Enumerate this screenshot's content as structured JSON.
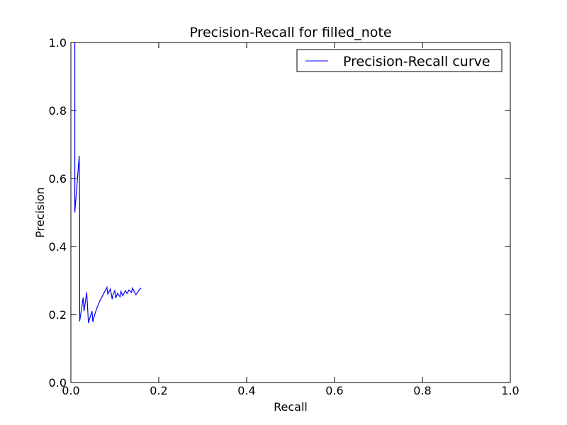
{
  "chart_data": {
    "type": "line",
    "title": "Precision-Recall for filled_note",
    "xlabel": "Recall",
    "ylabel": "Precision",
    "xlim": [
      0.0,
      1.0
    ],
    "ylim": [
      0.0,
      1.0
    ],
    "xticks": [
      "0.0",
      "0.2",
      "0.4",
      "0.6",
      "0.8",
      "1.0"
    ],
    "yticks": [
      "0.0",
      "0.2",
      "0.4",
      "0.6",
      "0.8",
      "1.0"
    ],
    "grid": false,
    "legend_position": "top-right",
    "series": [
      {
        "name": "Precision-Recall curve",
        "color": "#0000ff",
        "x": [
          0.009,
          0.009,
          0.019,
          0.02,
          0.02,
          0.028,
          0.03,
          0.036,
          0.04,
          0.042,
          0.048,
          0.05,
          0.052,
          0.058,
          0.066,
          0.074,
          0.082,
          0.084,
          0.09,
          0.094,
          0.095,
          0.1,
          0.102,
          0.106,
          0.112,
          0.114,
          0.118,
          0.124,
          0.128,
          0.132,
          0.138,
          0.14,
          0.148,
          0.154,
          0.16
        ],
        "y": [
          1.0,
          0.5,
          0.667,
          0.5,
          0.18,
          0.25,
          0.21,
          0.265,
          0.175,
          0.185,
          0.21,
          0.178,
          0.19,
          0.215,
          0.24,
          0.26,
          0.28,
          0.26,
          0.275,
          0.245,
          0.255,
          0.27,
          0.248,
          0.262,
          0.252,
          0.268,
          0.255,
          0.27,
          0.262,
          0.272,
          0.265,
          0.278,
          0.258,
          0.27,
          0.278
        ]
      }
    ]
  }
}
